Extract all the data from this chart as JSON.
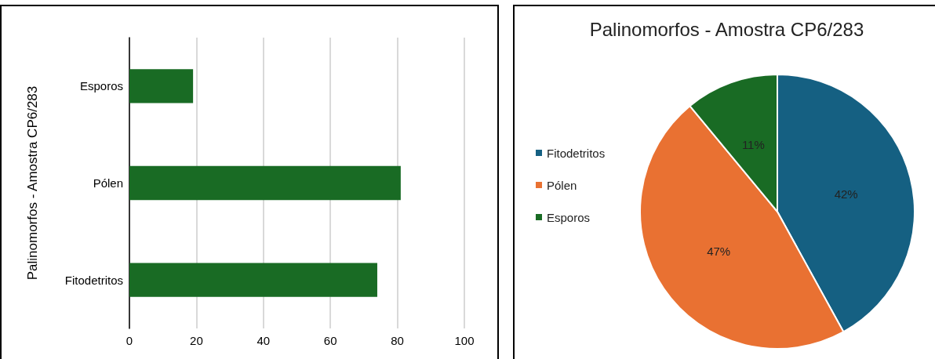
{
  "chart_data": [
    {
      "type": "bar",
      "orientation": "horizontal",
      "ylabel": "Palinomorfos - Amostra CP6/283",
      "categories": [
        "Esporos",
        "Pólen",
        "Fitodetritos"
      ],
      "values": [
        19,
        81,
        74
      ],
      "color": "#196b24",
      "xlim": [
        0,
        100
      ],
      "xticks": [
        0,
        20,
        40,
        60,
        80,
        100
      ],
      "grid": "x",
      "legend": false
    },
    {
      "type": "pie",
      "title": "Palinomorfos - Amostra CP6/283",
      "categories": [
        "Fitodetritos",
        "Pólen",
        "Esporos"
      ],
      "values": [
        42,
        47,
        11
      ],
      "colors": [
        "#156082",
        "#e97132",
        "#196b24"
      ],
      "legend": "left",
      "value_labels": [
        "42%",
        "47%",
        "11%"
      ]
    }
  ]
}
